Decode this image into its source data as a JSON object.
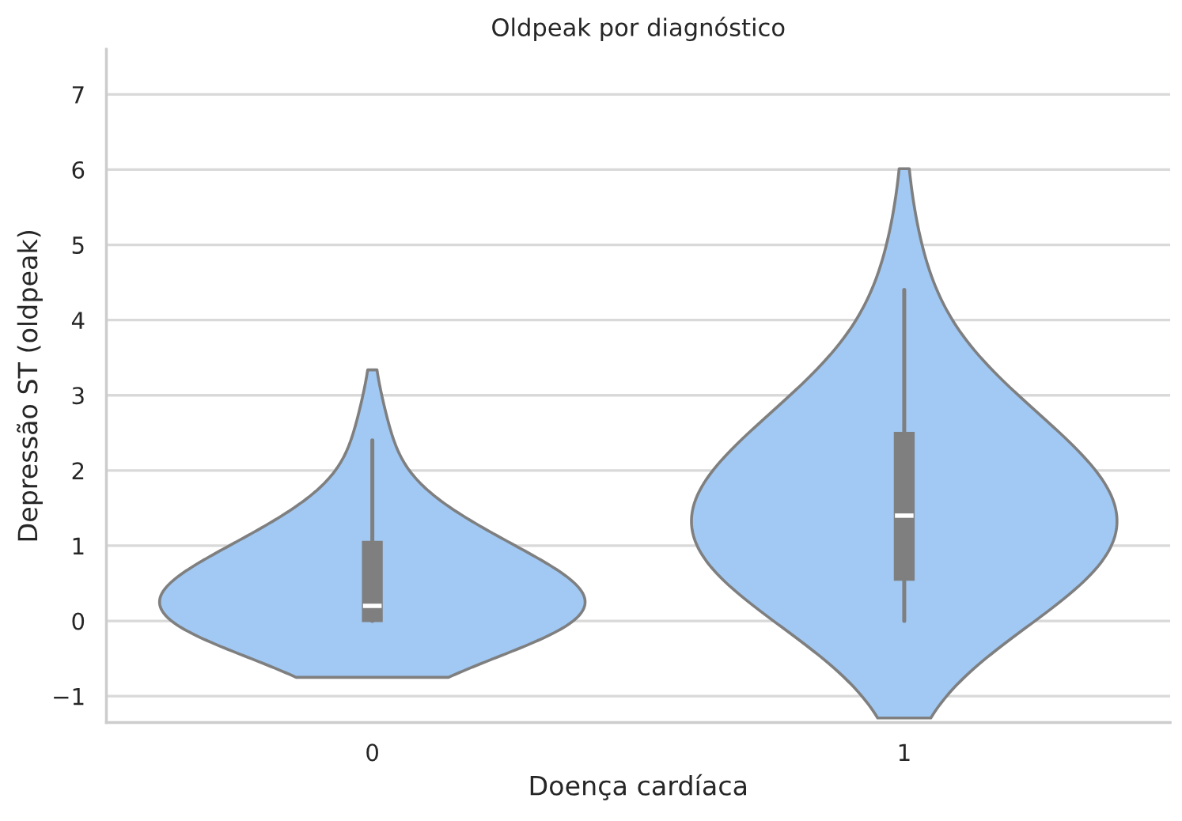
{
  "chart_data": {
    "type": "box",
    "title": "Oldpeak por diagnóstico",
    "xlabel": "Doença cardíaca",
    "ylabel": "Depressão ST (oldpeak)",
    "categories": [
      "0",
      "1"
    ],
    "boxes": [
      {
        "low": 0,
        "q1": 0,
        "median": 0.2,
        "q3": 1.05,
        "high": 2.4
      },
      {
        "low": 0,
        "q1": 0.55,
        "median": 1.4,
        "q3": 2.5,
        "high": 4.4
      }
    ],
    "color": "#7f7f7f",
    "ylim": [
      -1.35,
      7.6
    ],
    "yticks": [
      {
        "value": -1,
        "label": "−1"
      },
      0,
      1,
      2,
      3,
      4,
      5,
      6,
      7
    ],
    "grid": "y"
  }
}
